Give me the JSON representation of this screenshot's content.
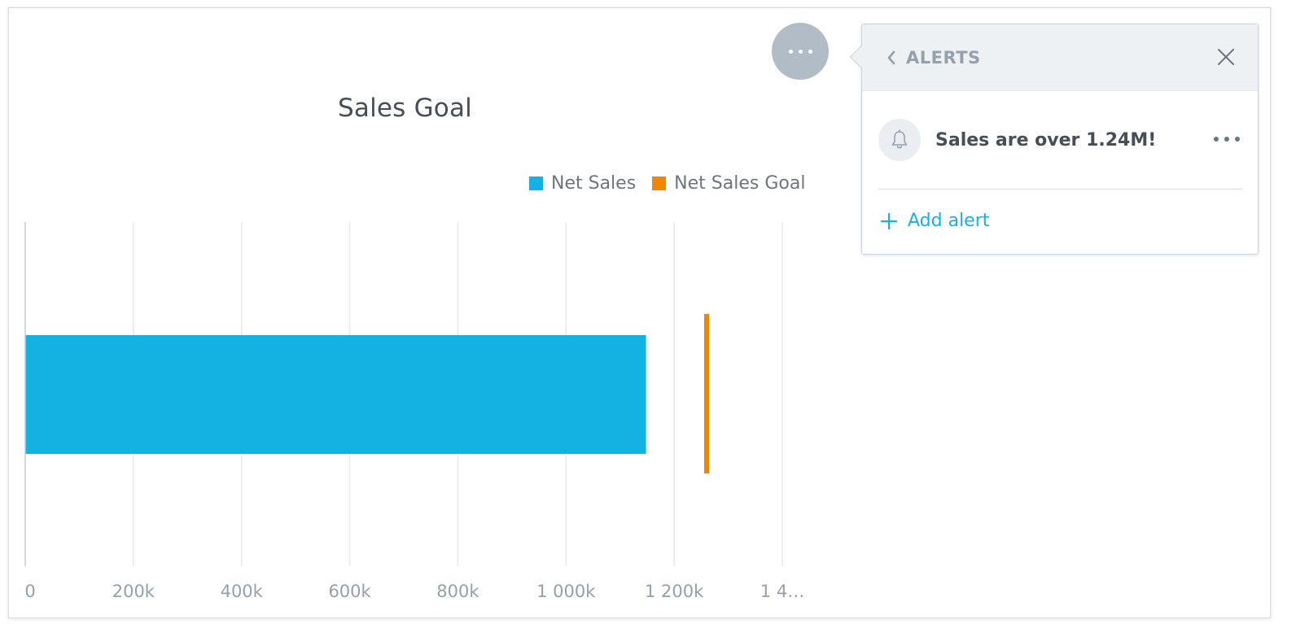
{
  "chart_data": {
    "type": "bar",
    "orientation": "horizontal",
    "title": "Sales Goal",
    "categories": [
      ""
    ],
    "series": [
      {
        "name": "Net Sales",
        "values": [
          1148000
        ],
        "color": "#14b2e2"
      },
      {
        "name": "Net Sales Goal",
        "values": [
          1260000
        ],
        "color": "#f18600",
        "display": "target-marker"
      }
    ],
    "xlim": [
      0,
      1400000
    ],
    "x_ticks": [
      {
        "value": 0,
        "label": "0"
      },
      {
        "value": 200000,
        "label": "200k"
      },
      {
        "value": 400000,
        "label": "400k"
      },
      {
        "value": 600000,
        "label": "600k"
      },
      {
        "value": 800000,
        "label": "800k"
      },
      {
        "value": 1000000,
        "label": "1 000k"
      },
      {
        "value": 1200000,
        "label": "1 200k"
      },
      {
        "value": 1400000,
        "label": "1 4…"
      }
    ],
    "grid": true,
    "legend": "top-right"
  },
  "more_button": {
    "icon": "more-horizontal-icon"
  },
  "alerts_panel": {
    "header": {
      "back_icon": "chevron-left-icon",
      "title": "ALERTS",
      "close_icon": "close-icon"
    },
    "alerts": [
      {
        "icon": "bell-icon",
        "text": "Sales are over 1.24M!",
        "menu_icon": "more-horizontal-icon"
      }
    ],
    "add_alert": {
      "icon": "plus-icon",
      "label": "Add alert"
    },
    "colors": {
      "accent": "#14b2e2",
      "header_bg": "#eef1f4"
    }
  }
}
